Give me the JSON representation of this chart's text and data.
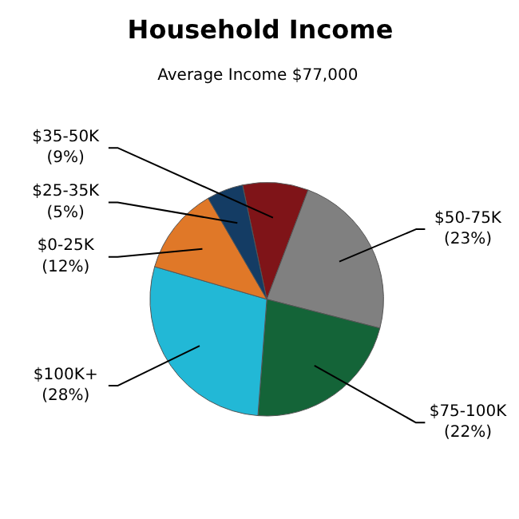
{
  "chart_data": {
    "type": "pie",
    "title": "Household Income",
    "subtitle": "Average Income  $77,000",
    "categories": [
      "$35-50K",
      "$50-75K",
      "$75-100K",
      "$100K+",
      "$0-25K",
      "$25-35K"
    ],
    "values": [
      9,
      23,
      22,
      28,
      12,
      5
    ],
    "colors": [
      "#7f1418",
      "#808080",
      "#146438",
      "#22b8d6",
      "#e07828",
      "#143c64"
    ],
    "value_labels": [
      "(9%)",
      "(23%)",
      "(22%)",
      "(28%)",
      "(12%)",
      "(5%)"
    ]
  }
}
